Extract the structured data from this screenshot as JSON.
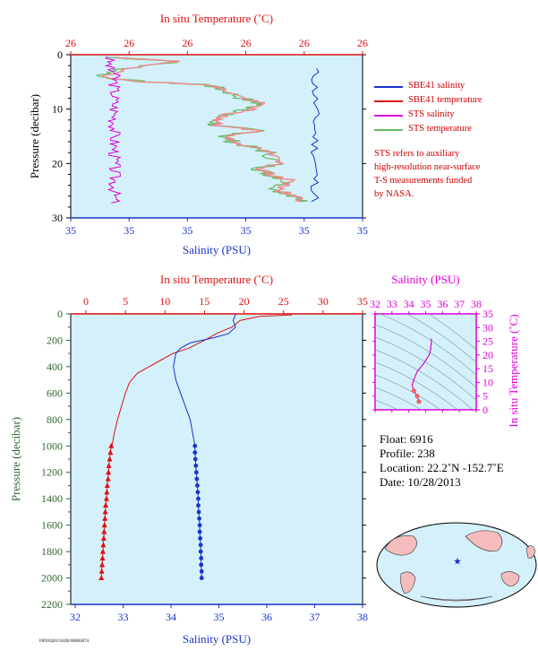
{
  "chart_data": [
    {
      "type": "line",
      "panel": "top-profile",
      "top_axis_label": "In situ Temperature (˚C)",
      "top_ticks": [
        "26",
        "26",
        "26",
        "26",
        "26",
        "26"
      ],
      "bottom_axis_label": "Salinity (PSU)",
      "bottom_ticks": [
        "35",
        "35",
        "35",
        "35",
        "35",
        "35"
      ],
      "ylabel": "Pressure (decibar)",
      "yticks": [
        0,
        10,
        20,
        30
      ],
      "ylim": [
        0,
        30
      ],
      "grid": false,
      "legend_position": "right",
      "series": [
        {
          "name": "SBE41 salinity",
          "color": "#1a33cc"
        },
        {
          "name": "SBE41 temperature",
          "color": "#dd1111"
        },
        {
          "name": "STS salinity",
          "color": "#dd00dd"
        },
        {
          "name": "STS temperature",
          "color": "#66bb66"
        }
      ],
      "note": [
        "STS refers to auxiliary",
        "high-resolution near-surface",
        "T-S measurements funded",
        "by NASA."
      ]
    },
    {
      "type": "line",
      "panel": "main-profile",
      "top_axis_label": "In situ Temperature (˚C)",
      "top_ticks": [
        0,
        5,
        10,
        15,
        20,
        25,
        30,
        35
      ],
      "xlim_temperature": [
        0,
        35
      ],
      "bottom_axis_label": "Salinity (PSU)",
      "bottom_ticks": [
        32,
        33,
        34,
        35,
        36,
        37,
        38
      ],
      "xlim_salinity": [
        32,
        38
      ],
      "ylabel": "Pressure (decibar)",
      "yticks": [
        0,
        200,
        400,
        600,
        800,
        1000,
        1200,
        1400,
        1600,
        1800,
        2000,
        2200
      ],
      "ylim": [
        0,
        2200
      ],
      "grid": false,
      "temperature": {
        "color": "#dd1111",
        "points": [
          [
            26.0,
            0
          ],
          [
            26.0,
            8
          ],
          [
            22.0,
            18
          ],
          [
            19.5,
            50
          ],
          [
            18.5,
            100
          ],
          [
            16.5,
            150
          ],
          [
            15.0,
            200
          ],
          [
            13.0,
            260
          ],
          [
            11.0,
            300
          ],
          [
            9.5,
            350
          ],
          [
            8.0,
            400
          ],
          [
            6.5,
            450
          ],
          [
            5.5,
            520
          ],
          [
            5.0,
            600
          ],
          [
            4.5,
            700
          ],
          [
            4.0,
            800
          ],
          [
            3.6,
            900
          ],
          [
            3.3,
            1000
          ]
        ],
        "markers": [
          [
            3.2,
            1000
          ],
          [
            3.1,
            1050
          ],
          [
            3.0,
            1100
          ],
          [
            2.9,
            1150
          ],
          [
            2.85,
            1200
          ],
          [
            2.8,
            1250
          ],
          [
            2.7,
            1300
          ],
          [
            2.65,
            1350
          ],
          [
            2.6,
            1400
          ],
          [
            2.5,
            1450
          ],
          [
            2.45,
            1500
          ],
          [
            2.4,
            1550
          ],
          [
            2.35,
            1600
          ],
          [
            2.3,
            1650
          ],
          [
            2.25,
            1700
          ],
          [
            2.2,
            1750
          ],
          [
            2.15,
            1800
          ],
          [
            2.1,
            1850
          ],
          [
            2.05,
            1900
          ],
          [
            2.0,
            1950
          ],
          [
            1.95,
            2000
          ]
        ]
      },
      "salinity": {
        "color": "#1a33cc",
        "points": [
          [
            35.35,
            0
          ],
          [
            35.3,
            50
          ],
          [
            35.35,
            100
          ],
          [
            35.2,
            150
          ],
          [
            34.9,
            180
          ],
          [
            34.4,
            220
          ],
          [
            34.2,
            260
          ],
          [
            34.1,
            300
          ],
          [
            34.05,
            400
          ],
          [
            34.1,
            500
          ],
          [
            34.2,
            600
          ],
          [
            34.3,
            700
          ],
          [
            34.4,
            800
          ],
          [
            34.45,
            900
          ],
          [
            34.5,
            1000
          ]
        ],
        "markers": [
          [
            34.5,
            1000
          ],
          [
            34.5,
            1050
          ],
          [
            34.51,
            1100
          ],
          [
            34.52,
            1150
          ],
          [
            34.53,
            1200
          ],
          [
            34.54,
            1250
          ],
          [
            34.55,
            1300
          ],
          [
            34.56,
            1350
          ],
          [
            34.57,
            1400
          ],
          [
            34.57,
            1450
          ],
          [
            34.58,
            1500
          ],
          [
            34.59,
            1550
          ],
          [
            34.6,
            1600
          ],
          [
            34.6,
            1650
          ],
          [
            34.61,
            1700
          ],
          [
            34.62,
            1750
          ],
          [
            34.62,
            1800
          ],
          [
            34.63,
            1850
          ],
          [
            34.63,
            1900
          ],
          [
            34.64,
            1950
          ],
          [
            34.64,
            2000
          ]
        ]
      }
    },
    {
      "type": "scatter",
      "panel": "ts-diagram",
      "top_axis_label": "Salinity (PSU)",
      "x_ticks": [
        32,
        33,
        34,
        35,
        36,
        37,
        38
      ],
      "xlim": [
        32,
        38
      ],
      "right_axis_label": "In situ Temperature (˚C)",
      "y_ticks": [
        0,
        5,
        10,
        15,
        20,
        25,
        30,
        35
      ],
      "ylim": [
        0,
        35
      ],
      "color": "#dd00dd",
      "points": [
        [
          35.35,
          26
        ],
        [
          35.3,
          22
        ],
        [
          35.2,
          20
        ],
        [
          34.9,
          17
        ],
        [
          34.5,
          14
        ],
        [
          34.3,
          11
        ],
        [
          34.2,
          9
        ],
        [
          34.3,
          7
        ],
        [
          34.5,
          5
        ],
        [
          34.6,
          3
        ]
      ]
    }
  ],
  "float_info": {
    "float": "Float:  6916",
    "profile": "Profile:  238",
    "location": "Location:  22.2˚N  -152.7˚E",
    "date": "Date:  10/28/2013"
  },
  "map": {
    "marker": "star",
    "marker_color": "#1a33cc"
  },
  "footer_code": "F6916|20131028 00083874"
}
